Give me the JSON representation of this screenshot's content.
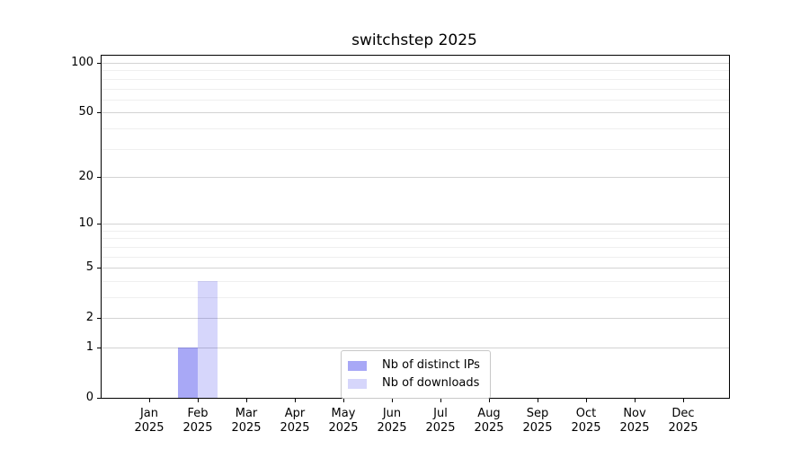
{
  "figure": {
    "background": "#ffffff"
  },
  "chart_data": {
    "type": "bar",
    "title": "switchstep 2025",
    "xlabel": "",
    "ylabel": "",
    "scale": "log1p",
    "grid": true,
    "ylim": [
      0,
      110
    ],
    "year_label": "2025",
    "months": [
      "Jan",
      "Feb",
      "Mar",
      "Apr",
      "May",
      "Jun",
      "Jul",
      "Aug",
      "Sep",
      "Oct",
      "Nov",
      "Dec"
    ],
    "y_ticks": [
      0,
      1,
      2,
      5,
      10,
      20,
      50,
      100
    ],
    "y_minor_ticks": [
      3,
      4,
      6,
      7,
      8,
      9,
      30,
      40,
      60,
      70,
      80,
      90
    ],
    "series": [
      {
        "name": "Nb of distinct IPs",
        "color": "rgba(0,0,230,0.34)",
        "values": [
          0,
          1,
          0,
          0,
          0,
          0,
          0,
          0,
          0,
          0,
          0,
          0
        ]
      },
      {
        "name": "Nb of downloads",
        "color": "rgba(0,0,230,0.16)",
        "values": [
          0,
          4,
          0,
          0,
          0,
          0,
          0,
          0,
          0,
          0,
          0,
          0
        ]
      }
    ],
    "legend_position": "lower center",
    "colors": {
      "major_grid": "#d3d3d3",
      "minor_grid": "#efefef",
      "spine": "#000000",
      "legend_border": "#c8c8c8",
      "text": "#000000"
    }
  }
}
